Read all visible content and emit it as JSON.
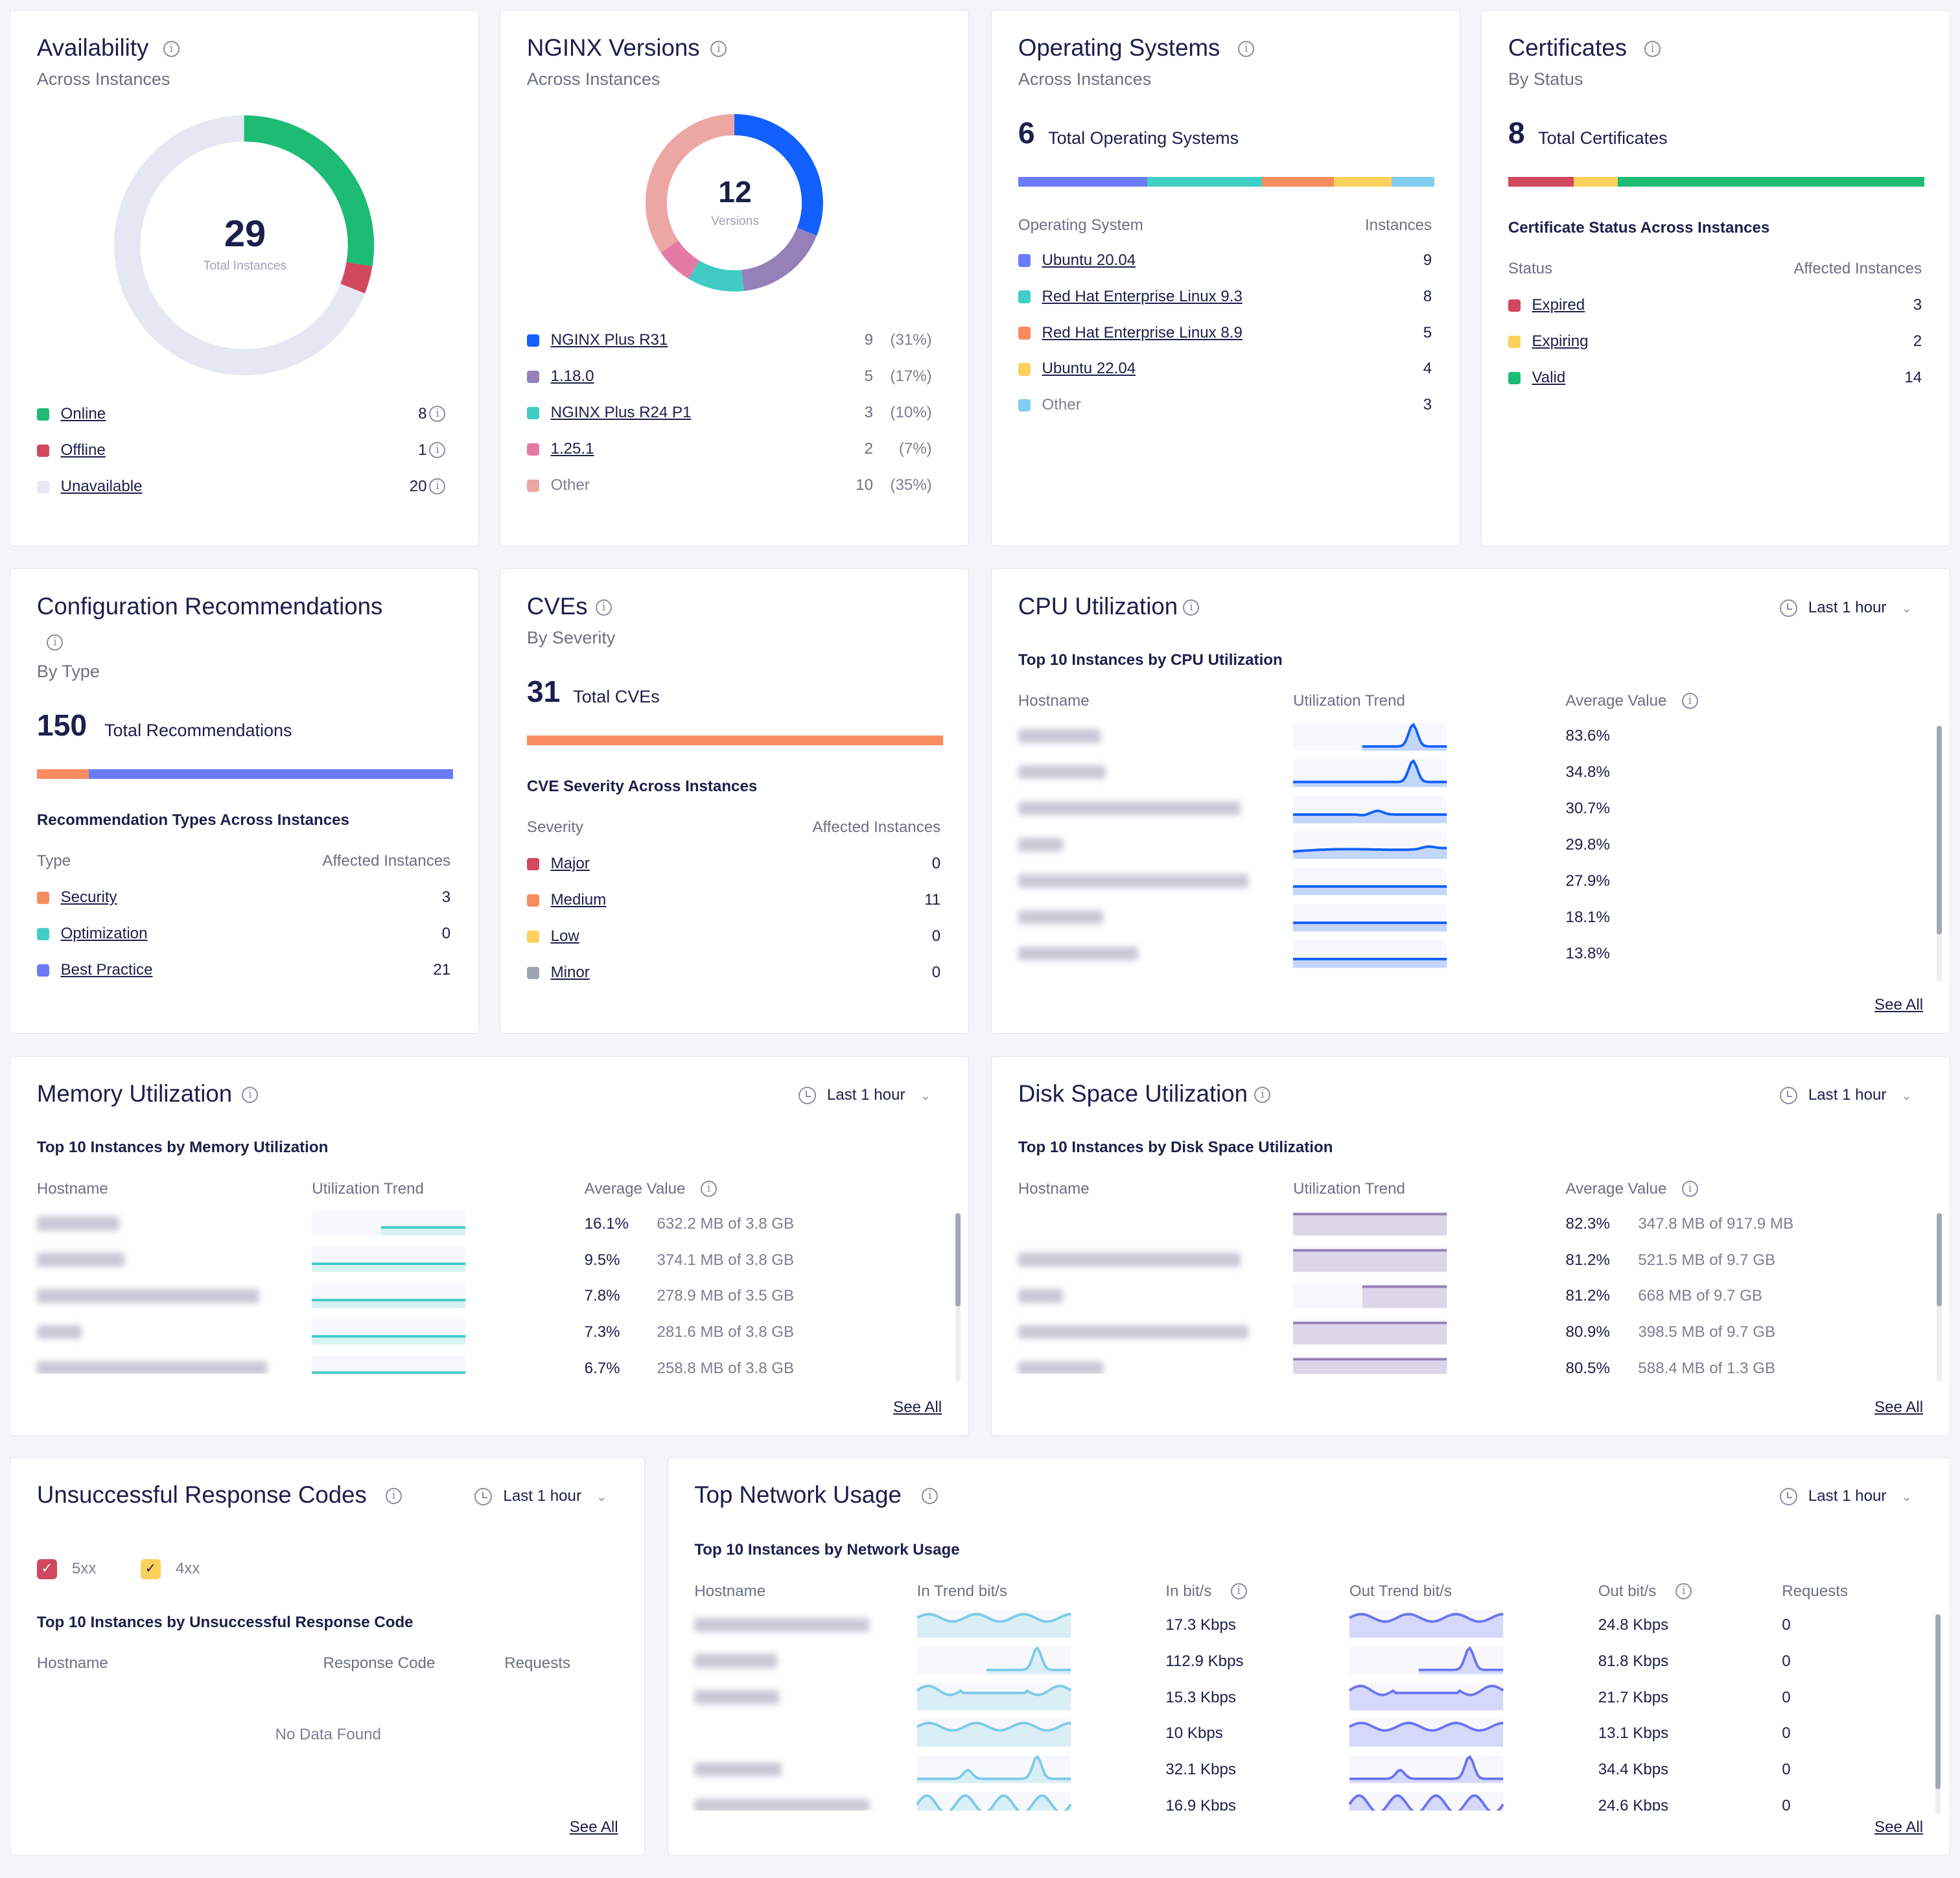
{
  "availability": {
    "title": "Availability",
    "subtitle": "Across Instances",
    "total": "29",
    "total_label": "Total Instances",
    "items": [
      {
        "label": "Online",
        "value": 8,
        "color": "#1dbb73"
      },
      {
        "label": "Offline",
        "value": 1,
        "color": "#d0495e"
      },
      {
        "label": "Unavailable",
        "value": 20,
        "color": "#e5e7f2"
      }
    ]
  },
  "nginx": {
    "title": "NGINX Versions",
    "subtitle": "Across Instances",
    "total": "12",
    "total_label": "Versions",
    "items": [
      {
        "label": "NGINX Plus R31",
        "value": 9,
        "pct": "(31%)",
        "color": "#1160ff",
        "link": true
      },
      {
        "label": "1.18.0",
        "value": 5,
        "pct": "(17%)",
        "color": "#9580b8",
        "link": true
      },
      {
        "label": "NGINX Plus R24 P1",
        "value": 3,
        "pct": "(10%)",
        "color": "#40cbc4",
        "link": true
      },
      {
        "label": "1.25.1",
        "value": 2,
        "pct": "(7%)",
        "color": "#e47aa4",
        "link": true
      },
      {
        "label": "Other",
        "value": 10,
        "pct": "(35%)",
        "color": "#eca6a3",
        "link": false
      }
    ]
  },
  "os": {
    "title": "Operating Systems",
    "subtitle": "Across Instances",
    "total": "6",
    "total_label": "Total Operating Systems",
    "col1": "Operating System",
    "col2": "Instances",
    "items": [
      {
        "label": "Ubuntu 20.04",
        "value": 9,
        "color": "#6b7bf7",
        "link": true
      },
      {
        "label": "Red Hat Enterprise Linux 9.3",
        "value": 8,
        "color": "#40cfc4",
        "link": true
      },
      {
        "label": "Red Hat Enterprise Linux 8.9",
        "value": 5,
        "color": "#f98c5f",
        "link": true
      },
      {
        "label": "Ubuntu 22.04",
        "value": 4,
        "color": "#fbd15b",
        "link": true
      },
      {
        "label": "Other",
        "value": 3,
        "color": "#82cdf0",
        "link": false
      }
    ]
  },
  "certs": {
    "title": "Certificates",
    "subtitle": "By Status",
    "total": "8",
    "total_label": "Total Certificates",
    "section": "Certificate Status Across Instances",
    "col1": "Status",
    "col2": "Affected Instances",
    "items": [
      {
        "label": "Expired",
        "value": 3,
        "color": "#d0495e",
        "link": true
      },
      {
        "label": "Expiring",
        "value": 2,
        "color": "#fbd15b",
        "link": true
      },
      {
        "label": "Valid",
        "value": 14,
        "color": "#1dbb73",
        "link": true
      }
    ]
  },
  "config": {
    "title": "Configuration Recommendations",
    "subtitle": "By Type",
    "total": "150",
    "total_label": "Total Recommendations",
    "section": "Recommendation Types Across Instances",
    "col1": "Type",
    "col2": "Affected Instances",
    "items": [
      {
        "label": "Security",
        "value": 3,
        "color": "#f98c5f",
        "link": true
      },
      {
        "label": "Optimization",
        "value": 0,
        "color": "#40cfc4",
        "link": true
      },
      {
        "label": "Best Practice",
        "value": 21,
        "color": "#6b7bf7",
        "link": true
      }
    ]
  },
  "cves": {
    "title": "CVEs",
    "subtitle": "By Severity",
    "total": "31",
    "total_label": "Total CVEs",
    "section": "CVE Severity Across Instances",
    "col1": "Severity",
    "col2": "Affected Instances",
    "items": [
      {
        "label": "Major",
        "value": 0,
        "color": "#d0495e",
        "link": true
      },
      {
        "label": "Medium",
        "value": 11,
        "color": "#f98c5f",
        "link": true
      },
      {
        "label": "Low",
        "value": 0,
        "color": "#fbd15b",
        "link": true
      },
      {
        "label": "Minor",
        "value": 0,
        "color": "#9fa3b3",
        "link": true
      }
    ]
  },
  "cpu": {
    "title": "CPU Utilization",
    "time_range": "Last 1 hour",
    "section": "Top 10 Instances by CPU Utilization",
    "cols": [
      "Hostname",
      "Utilization Trend",
      "Average Value"
    ],
    "see_all": "See All",
    "color": "#1160ff",
    "rows": [
      {
        "value": "83.6%",
        "trend": "spike-partial"
      },
      {
        "value": "34.8%",
        "trend": "spike"
      },
      {
        "value": "30.7%",
        "trend": "bump"
      },
      {
        "value": "29.8%",
        "trend": "rise"
      },
      {
        "value": "27.9%",
        "trend": "flat"
      },
      {
        "value": "18.1%",
        "trend": "flat"
      },
      {
        "value": "13.8%",
        "trend": "flat"
      }
    ]
  },
  "memory": {
    "title": "Memory Utilization",
    "time_range": "Last 1 hour",
    "section": "Top 10 Instances by Memory Utilization",
    "cols": [
      "Hostname",
      "Utilization Trend",
      "Average Value"
    ],
    "see_all": "See All",
    "color": "#40cbc4",
    "rows": [
      {
        "value": "16.1%",
        "detail": "632.2 MB of 3.8 GB",
        "trend": "flat-partial"
      },
      {
        "value": "9.5%",
        "detail": "374.1 MB of 3.8 GB",
        "trend": "flat"
      },
      {
        "value": "7.8%",
        "detail": "278.9 MB of 3.5 GB",
        "trend": "flat"
      },
      {
        "value": "7.3%",
        "detail": "281.6 MB of 3.8 GB",
        "trend": "flat"
      },
      {
        "value": "6.7%",
        "detail": "258.8 MB of 3.8 GB",
        "trend": "flat"
      }
    ]
  },
  "disk": {
    "title": "Disk Space Utilization",
    "time_range": "Last 1 hour",
    "section": "Top 10 Instances by Disk Space Utilization",
    "cols": [
      "Hostname",
      "Utilization Trend",
      "Average Value"
    ],
    "see_all": "See All",
    "color": "#9580b8",
    "rows": [
      {
        "value": "82.3%",
        "detail": "347.8 MB of 917.9 MB",
        "trend": "high"
      },
      {
        "value": "81.2%",
        "detail": "521.5 MB of 9.7 GB",
        "trend": "high"
      },
      {
        "value": "81.2%",
        "detail": "668 MB of 9.7 GB",
        "trend": "high-partial"
      },
      {
        "value": "80.9%",
        "detail": "398.5 MB of 9.7 GB",
        "trend": "high"
      },
      {
        "value": "80.5%",
        "detail": "588.4 MB of 1.3 GB",
        "trend": "high"
      }
    ]
  },
  "responses": {
    "title": "Unsuccessful Response Codes",
    "time_range": "Last 1 hour",
    "filters": [
      {
        "label": "5xx",
        "color": "#d0495e",
        "checked": true
      },
      {
        "label": "4xx",
        "color": "#fbd15b",
        "checked": true
      }
    ],
    "section": "Top 10 Instances by Unsuccessful Response Code",
    "cols": [
      "Hostname",
      "Response Code",
      "Requests"
    ],
    "empty": "No Data Found",
    "see_all": "See All"
  },
  "network": {
    "title": "Top Network Usage",
    "time_range": "Last 1 hour",
    "section": "Top 10 Instances by Network Usage",
    "cols": [
      "Hostname",
      "In Trend bit/s",
      "In bit/s",
      "Out Trend bit/s",
      "Out bit/s",
      "Requests"
    ],
    "see_all": "See All",
    "in_color": "#7ccbe8",
    "out_color": "#6b74f0",
    "rows": [
      {
        "in": "17.3 Kbps",
        "out": "24.8 Kbps",
        "requests": "0",
        "trend": "wave"
      },
      {
        "in": "112.9 Kbps",
        "out": "81.8 Kbps",
        "requests": "0",
        "trend": "spike-partial"
      },
      {
        "in": "15.3 Kbps",
        "out": "21.7 Kbps",
        "requests": "0",
        "trend": "wave2"
      },
      {
        "in": "10 Kbps",
        "out": "13.1 Kbps",
        "requests": "0",
        "trend": "wave"
      },
      {
        "in": "32.1 Kbps",
        "out": "34.4 Kbps",
        "requests": "0",
        "trend": "double"
      },
      {
        "in": "16.9 Kbps",
        "out": "24.6 Kbps",
        "requests": "0",
        "trend": "wave3"
      }
    ]
  }
}
